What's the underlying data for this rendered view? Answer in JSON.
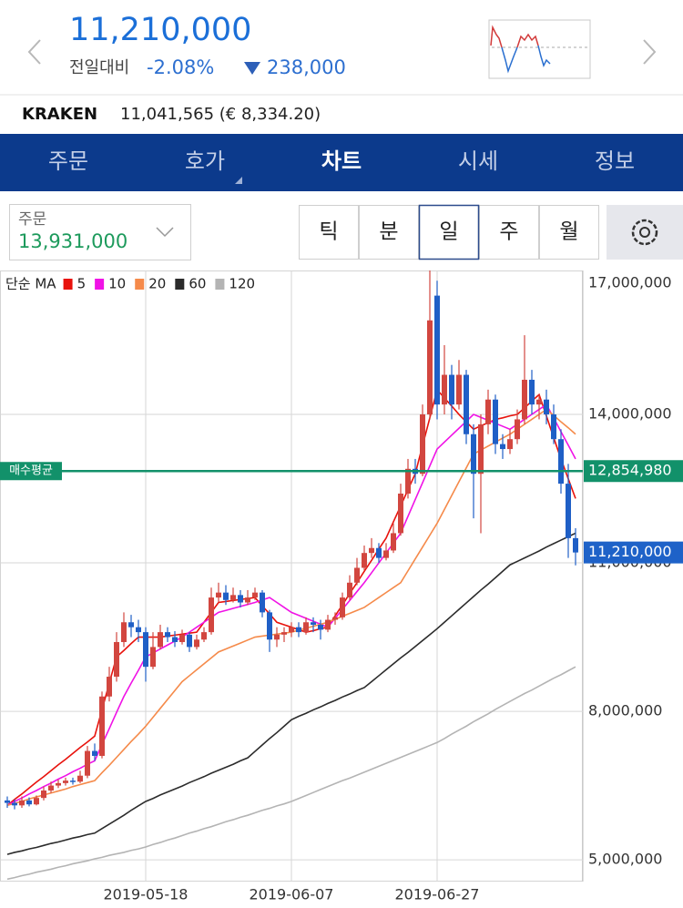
{
  "header": {
    "price": "11,210,000",
    "change_label": "전일대비",
    "change_pct": "-2.08%",
    "change_amount": "238,000"
  },
  "info_bar": {
    "exchange": "KRAKEN",
    "quote": "11,041,565 (€ 8,334.20)"
  },
  "tabs": {
    "items": [
      "주문",
      "호가",
      "차트",
      "시세",
      "정보"
    ],
    "selected": 2
  },
  "order": {
    "label": "주문",
    "value": "13,931,000"
  },
  "periods": {
    "items": [
      "틱",
      "분",
      "일",
      "주",
      "월"
    ],
    "selected": 2
  },
  "chart_data": {
    "type": "candlestick",
    "legend_title": "단순 MA",
    "legend": "top-left",
    "grid": true,
    "up_color": "#d2463f",
    "down_color": "#1f5fc6",
    "categories": [
      null,
      null,
      null,
      null,
      null,
      null,
      null,
      null,
      null,
      null,
      null,
      null,
      null,
      null,
      null,
      null,
      null,
      null,
      null,
      "2019-05-18",
      null,
      null,
      null,
      null,
      null,
      null,
      null,
      null,
      null,
      null,
      null,
      null,
      null,
      null,
      null,
      null,
      null,
      null,
      null,
      "2019-06-07",
      null,
      null,
      null,
      null,
      null,
      null,
      null,
      null,
      null,
      null,
      null,
      null,
      null,
      null,
      null,
      null,
      null,
      null,
      null,
      "2019-06-27",
      null,
      null,
      null,
      null,
      null,
      null,
      null,
      null,
      null,
      null,
      null,
      null,
      null,
      null,
      null,
      null,
      null,
      null,
      null
    ],
    "open": [
      6200000,
      6150000,
      6100000,
      6200000,
      6120000,
      6250000,
      6400000,
      6500000,
      6550000,
      6600000,
      6580000,
      6700000,
      7200000,
      7100000,
      8300000,
      8700000,
      9400000,
      9800000,
      9700000,
      9600000,
      8900000,
      9300000,
      9600000,
      9500000,
      9400000,
      9550000,
      9300000,
      9450000,
      9600000,
      10300000,
      10400000,
      10250000,
      10350000,
      10200000,
      10300000,
      10400000,
      10000000,
      9450000,
      9550000,
      9600000,
      9700000,
      9600000,
      9800000,
      9750000,
      9650000,
      9850000,
      9900000,
      10300000,
      10600000,
      10900000,
      11200000,
      11300000,
      11100000,
      11250000,
      11600000,
      12400000,
      12900000,
      12800000,
      14000000,
      16400000,
      14200000,
      14800000,
      14200000,
      14800000,
      13600000,
      12800000,
      13800000,
      14300000,
      13400000,
      13300000,
      13500000,
      13900000,
      14700000,
      14200000,
      14300000,
      14000000,
      13500000,
      12600000,
      11500000
    ],
    "high": [
      6280000,
      6220000,
      6280000,
      6260000,
      6300000,
      6480000,
      6580000,
      6620000,
      6660000,
      6660000,
      6800000,
      7300000,
      7350000,
      8400000,
      8900000,
      9600000,
      10000000,
      9950000,
      9850000,
      9700000,
      9600000,
      9750000,
      9700000,
      9620000,
      9650000,
      9600000,
      9550000,
      9700000,
      10500000,
      10600000,
      10550000,
      10500000,
      10450000,
      10450000,
      10500000,
      10450000,
      10050000,
      9700000,
      9700000,
      9800000,
      9800000,
      9900000,
      9900000,
      9850000,
      9950000,
      10000000,
      10400000,
      10750000,
      11100000,
      11350000,
      11500000,
      11400000,
      11400000,
      11800000,
      12600000,
      13100000,
      13100000,
      14200000,
      17050000,
      16700000,
      15400000,
      15000000,
      15100000,
      14900000,
      13800000,
      14000000,
      14500000,
      14400000,
      13600000,
      13700000,
      14100000,
      15600000,
      14900000,
      14400000,
      14500000,
      14200000,
      13700000,
      13000000,
      11700000
    ],
    "low": [
      6050000,
      6020000,
      6050000,
      6080000,
      6100000,
      6200000,
      6350000,
      6450000,
      6500000,
      6520000,
      6550000,
      6650000,
      7000000,
      7050000,
      8200000,
      8600000,
      9300000,
      9500000,
      9400000,
      8600000,
      8850000,
      9250000,
      9400000,
      9300000,
      9350000,
      9200000,
      9250000,
      9400000,
      9550000,
      10200000,
      10150000,
      10200000,
      10100000,
      10150000,
      10250000,
      9900000,
      9200000,
      9300000,
      9400000,
      9500000,
      9500000,
      9550000,
      9600000,
      9450000,
      9600000,
      9750000,
      9850000,
      10250000,
      10550000,
      10850000,
      11100000,
      11000000,
      11050000,
      11200000,
      11550000,
      12300000,
      12600000,
      12750000,
      13900000,
      13900000,
      14000000,
      13900000,
      14100000,
      13400000,
      11900000,
      11600000,
      13600000,
      13200000,
      13100000,
      13200000,
      13400000,
      13800000,
      14000000,
      13900000,
      13800000,
      13400000,
      12400000,
      11100000,
      10950000
    ],
    "close": [
      6150000,
      6100000,
      6200000,
      6120000,
      6250000,
      6400000,
      6500000,
      6550000,
      6600000,
      6580000,
      6700000,
      7200000,
      7100000,
      8300000,
      8700000,
      9400000,
      9800000,
      9700000,
      9600000,
      8900000,
      9300000,
      9600000,
      9500000,
      9400000,
      9550000,
      9300000,
      9450000,
      9600000,
      10300000,
      10400000,
      10250000,
      10350000,
      10200000,
      10300000,
      10400000,
      10000000,
      9450000,
      9550000,
      9600000,
      9700000,
      9600000,
      9800000,
      9750000,
      9650000,
      9850000,
      9900000,
      10300000,
      10600000,
      10900000,
      11200000,
      11300000,
      11100000,
      11250000,
      11600000,
      12400000,
      12900000,
      12800000,
      14000000,
      15900000,
      14200000,
      14800000,
      14200000,
      14800000,
      13600000,
      12800000,
      13800000,
      14300000,
      13400000,
      13300000,
      13500000,
      13900000,
      14700000,
      14200000,
      14300000,
      14000000,
      13500000,
      12600000,
      11500000,
      11210000
    ],
    "series": [
      {
        "name": "5",
        "color": "#e8120c",
        "values": [
          6100000,
          6220000,
          6330000,
          6450000,
          6570000,
          6680000,
          6800000,
          6920000,
          7030000,
          7150000,
          7270000,
          7380000,
          7500000,
          8030000,
          8570000,
          9100000,
          9230000,
          9370000,
          9500000,
          9500000,
          9500000,
          9500000,
          9520000,
          9540000,
          9560000,
          9580000,
          9600000,
          9800000,
          10000000,
          10200000,
          10220000,
          10240000,
          10260000,
          10280000,
          10300000,
          10130000,
          9970000,
          9800000,
          9750000,
          9700000,
          9650000,
          9600000,
          9630000,
          9670000,
          9700000,
          9930000,
          10150000,
          10380000,
          10600000,
          10830000,
          11050000,
          11280000,
          11500000,
          11830000,
          12150000,
          12480000,
          12800000,
          13370000,
          13930000,
          14500000,
          14330000,
          14170000,
          14000000,
          13850000,
          13700000,
          13770000,
          13830000,
          13900000,
          13930000,
          13970000,
          14000000,
          14130000,
          14270000,
          14400000,
          13970000,
          13530000,
          13100000,
          12700000,
          12300000
        ]
      },
      {
        "name": "10",
        "color": "#f012e6",
        "values": [
          6100000,
          6180000,
          6250000,
          6330000,
          6400000,
          6480000,
          6550000,
          6630000,
          6700000,
          6780000,
          6850000,
          6930000,
          7000000,
          7330000,
          7650000,
          7980000,
          8300000,
          8570000,
          8830000,
          9100000,
          9180000,
          9260000,
          9340000,
          9420000,
          9500000,
          9600000,
          9700000,
          9800000,
          9900000,
          10000000,
          10040000,
          10080000,
          10120000,
          10160000,
          10200000,
          10250000,
          10300000,
          10200000,
          10100000,
          10000000,
          9940000,
          9880000,
          9820000,
          9760000,
          9700000,
          9880000,
          10060000,
          10240000,
          10420000,
          10600000,
          10800000,
          11000000,
          11200000,
          11400000,
          11600000,
          11940000,
          12280000,
          12620000,
          12960000,
          13300000,
          13440000,
          13580000,
          13720000,
          13860000,
          14000000,
          13940000,
          13880000,
          13820000,
          13760000,
          13700000,
          13800000,
          13900000,
          14000000,
          14100000,
          14200000,
          13930000,
          13650000,
          13380000,
          13100000
        ]
      },
      {
        "name": "20",
        "color": "#f58a4a",
        "values": [
          6100000,
          6140000,
          6180000,
          6230000,
          6270000,
          6310000,
          6350000,
          6390000,
          6430000,
          6480000,
          6520000,
          6560000,
          6600000,
          6760000,
          6910000,
          7070000,
          7230000,
          7390000,
          7540000,
          7700000,
          7880000,
          8060000,
          8240000,
          8420000,
          8600000,
          8720000,
          8840000,
          8960000,
          9080000,
          9200000,
          9260000,
          9320000,
          9380000,
          9440000,
          9500000,
          9520000,
          9540000,
          9560000,
          9580000,
          9600000,
          9640000,
          9680000,
          9720000,
          9760000,
          9800000,
          9860000,
          9920000,
          9980000,
          10040000,
          10100000,
          10200000,
          10300000,
          10400000,
          10500000,
          10600000,
          10840000,
          11080000,
          11320000,
          11560000,
          11800000,
          12080000,
          12360000,
          12640000,
          12920000,
          13200000,
          13280000,
          13360000,
          13440000,
          13520000,
          13600000,
          13700000,
          13800000,
          13900000,
          14000000,
          14100000,
          13980000,
          13850000,
          13730000,
          13600000
        ]
      },
      {
        "name": "60",
        "color": "#2b2b2b",
        "values": [
          5110000,
          5150000,
          5180000,
          5220000,
          5250000,
          5290000,
          5330000,
          5360000,
          5400000,
          5440000,
          5470000,
          5510000,
          5540000,
          5630000,
          5720000,
          5810000,
          5900000,
          6000000,
          6090000,
          6180000,
          6240000,
          6310000,
          6370000,
          6430000,
          6490000,
          6560000,
          6620000,
          6680000,
          6750000,
          6810000,
          6870000,
          6930000,
          7000000,
          7060000,
          7190000,
          7320000,
          7450000,
          7570000,
          7700000,
          7830000,
          7900000,
          7960000,
          8030000,
          8090000,
          8160000,
          8220000,
          8290000,
          8350000,
          8420000,
          8480000,
          8600000,
          8720000,
          8840000,
          8960000,
          9080000,
          9190000,
          9310000,
          9430000,
          9550000,
          9670000,
          9800000,
          9930000,
          10060000,
          10190000,
          10320000,
          10450000,
          10570000,
          10700000,
          10830000,
          10960000,
          11030000,
          11100000,
          11170000,
          11240000,
          11320000,
          11390000,
          11460000,
          11530000,
          11600000
        ]
      },
      {
        "name": "120",
        "color": "#b4b4b4",
        "values": [
          4610000,
          4640000,
          4680000,
          4710000,
          4750000,
          4780000,
          4810000,
          4850000,
          4880000,
          4920000,
          4950000,
          4980000,
          5020000,
          5050000,
          5090000,
          5120000,
          5150000,
          5190000,
          5220000,
          5260000,
          5310000,
          5350000,
          5400000,
          5440000,
          5490000,
          5540000,
          5580000,
          5630000,
          5670000,
          5720000,
          5770000,
          5810000,
          5860000,
          5900000,
          5950000,
          6000000,
          6040000,
          6090000,
          6130000,
          6180000,
          6240000,
          6300000,
          6360000,
          6420000,
          6480000,
          6540000,
          6600000,
          6650000,
          6710000,
          6770000,
          6830000,
          6890000,
          6950000,
          7010000,
          7070000,
          7130000,
          7190000,
          7250000,
          7310000,
          7370000,
          7450000,
          7540000,
          7620000,
          7700000,
          7790000,
          7870000,
          7950000,
          8040000,
          8120000,
          8200000,
          8280000,
          8360000,
          8430000,
          8510000,
          8590000,
          8670000,
          8740000,
          8820000,
          8900000
        ]
      }
    ],
    "ylim": [
      4560000,
      17000000
    ],
    "yticks": [
      {
        "value": 5000000,
        "label": "5,000,000"
      },
      {
        "value": 8000000,
        "label": "8,000,000"
      },
      {
        "value": 11000000,
        "label": "11,000,000"
      },
      {
        "value": 14000000,
        "label": "14,000,000"
      },
      {
        "value": 17000000,
        "label": "17,000,000"
      }
    ],
    "avg_line": {
      "label": "매수평균",
      "value": 12854980,
      "value_label": "12,854,980",
      "color": "#12916a"
    },
    "last_price": {
      "value": 11210000,
      "value_label": "11,210,000",
      "color": "#1e62c8"
    }
  }
}
